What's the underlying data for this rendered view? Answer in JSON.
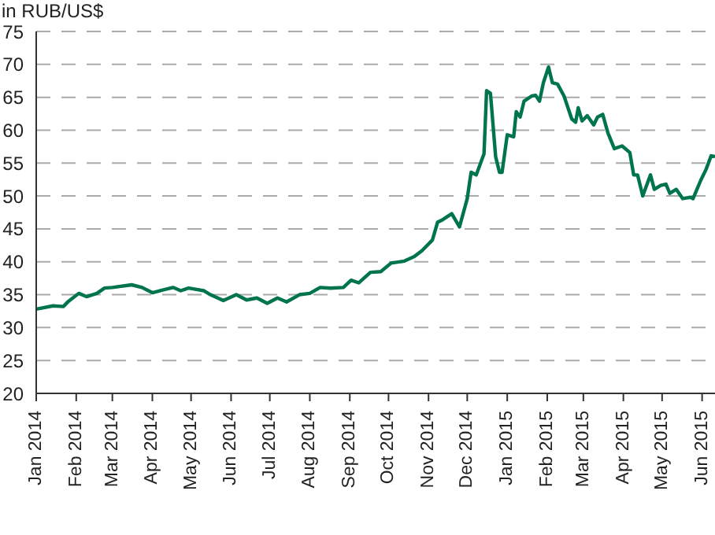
{
  "chart_data": {
    "type": "line",
    "ylabel": "in RUB/US$",
    "x": [
      "2014-01-01",
      "2014-01-14",
      "2014-01-22",
      "2014-01-26",
      "2014-02-03",
      "2014-02-09",
      "2014-02-17",
      "2014-02-23",
      "2014-03-01",
      "2014-03-16",
      "2014-03-24",
      "2014-04-01",
      "2014-04-09",
      "2014-04-17",
      "2014-04-23",
      "2014-04-29",
      "2014-05-11",
      "2014-05-16",
      "2014-05-26",
      "2014-06-05",
      "2014-06-13",
      "2014-06-21",
      "2014-06-29",
      "2014-07-07",
      "2014-07-14",
      "2014-07-24",
      "2014-08-01",
      "2014-08-09",
      "2014-08-17",
      "2014-08-27",
      "2014-09-02",
      "2014-09-08",
      "2014-09-17",
      "2014-09-25",
      "2014-10-03",
      "2014-10-13",
      "2014-10-21",
      "2014-10-27",
      "2014-11-04",
      "2014-11-08",
      "2014-11-12",
      "2014-11-19",
      "2014-11-25",
      "2014-12-01",
      "2014-12-04",
      "2014-12-08",
      "2014-12-14",
      "2014-12-16",
      "2014-12-19",
      "2014-12-23",
      "2014-12-26",
      "2014-12-28",
      "2015-01-01",
      "2015-01-06",
      "2015-01-08",
      "2015-01-11",
      "2015-01-14",
      "2015-01-20",
      "2015-01-23",
      "2015-01-26",
      "2015-01-29",
      "2015-02-02",
      "2015-02-05",
      "2015-02-09",
      "2015-02-14",
      "2015-02-20",
      "2015-02-23",
      "2015-02-25",
      "2015-02-28",
      "2015-03-04",
      "2015-03-09",
      "2015-03-12",
      "2015-03-16",
      "2015-03-20",
      "2015-03-25",
      "2015-03-31",
      "2015-04-06",
      "2015-04-09",
      "2015-04-12",
      "2015-04-16",
      "2015-04-22",
      "2015-04-25",
      "2015-04-30",
      "2015-05-04",
      "2015-05-07",
      "2015-05-12",
      "2015-05-17",
      "2015-05-23",
      "2015-05-25",
      "2015-05-31",
      "2015-06-04",
      "2015-06-08",
      "2015-06-11"
    ],
    "series": [
      {
        "color": "#00734f",
        "values": [
          32.8,
          33.3,
          33.2,
          34.0,
          35.2,
          34.7,
          35.2,
          36.0,
          36.1,
          36.5,
          36.1,
          35.3,
          35.7,
          36.1,
          35.6,
          36.0,
          35.6,
          35.0,
          34.1,
          35.0,
          34.2,
          34.5,
          33.7,
          34.5,
          33.9,
          35.0,
          35.2,
          36.1,
          36.0,
          36.1,
          37.2,
          36.8,
          38.4,
          38.5,
          39.8,
          40.1,
          40.8,
          41.7,
          43.3,
          46.0,
          46.4,
          47.3,
          45.3,
          49.6,
          53.6,
          53.2,
          56.4,
          66.0,
          65.6,
          56.0,
          53.6,
          53.6,
          59.3,
          59.0,
          62.8,
          62.0,
          64.4,
          65.2,
          65.3,
          64.4,
          67.2,
          69.6,
          67.2,
          67.0,
          65.2,
          61.7,
          61.2,
          63.4,
          61.4,
          62.2,
          60.8,
          62.0,
          62.4,
          59.6,
          57.2,
          57.6,
          56.6,
          53.2,
          53.2,
          50.0,
          53.2,
          51.0,
          51.6,
          51.8,
          50.4,
          51.0,
          49.6,
          49.8,
          49.6,
          52.4,
          54.0,
          56.1,
          56.0
        ]
      }
    ],
    "xlim": [
      "2014-01-01",
      "2015-06-11"
    ],
    "xticks": [
      {
        "value": "2014-01-01",
        "label": "Jan 2014"
      },
      {
        "value": "2014-02-01",
        "label": "Feb 2014"
      },
      {
        "value": "2014-03-01",
        "label": "Mar 2014"
      },
      {
        "value": "2014-04-01",
        "label": "Apr 2014"
      },
      {
        "value": "2014-05-01",
        "label": "May 2014"
      },
      {
        "value": "2014-06-01",
        "label": "Jun 2014"
      },
      {
        "value": "2014-07-01",
        "label": "Jul 2014"
      },
      {
        "value": "2014-08-01",
        "label": "Aug 2014"
      },
      {
        "value": "2014-09-01",
        "label": "Sep 2014"
      },
      {
        "value": "2014-10-01",
        "label": "Oct 2014"
      },
      {
        "value": "2014-11-01",
        "label": "Nov 2014"
      },
      {
        "value": "2014-12-01",
        "label": "Dec 2014"
      },
      {
        "value": "2015-01-01",
        "label": "Jan 2015"
      },
      {
        "value": "2015-02-01",
        "label": "Feb 2015"
      },
      {
        "value": "2015-03-01",
        "label": "Mar 2015"
      },
      {
        "value": "2015-04-01",
        "label": "Apr 2015"
      },
      {
        "value": "2015-05-01",
        "label": "May 2015"
      },
      {
        "value": "2015-06-01",
        "label": "Jun 2015"
      }
    ],
    "ylim": [
      20,
      75
    ],
    "yticks": [
      20,
      25,
      30,
      35,
      40,
      45,
      50,
      55,
      60,
      65,
      70,
      75
    ],
    "grid": "y",
    "marker": "none",
    "line_style": "solid"
  }
}
